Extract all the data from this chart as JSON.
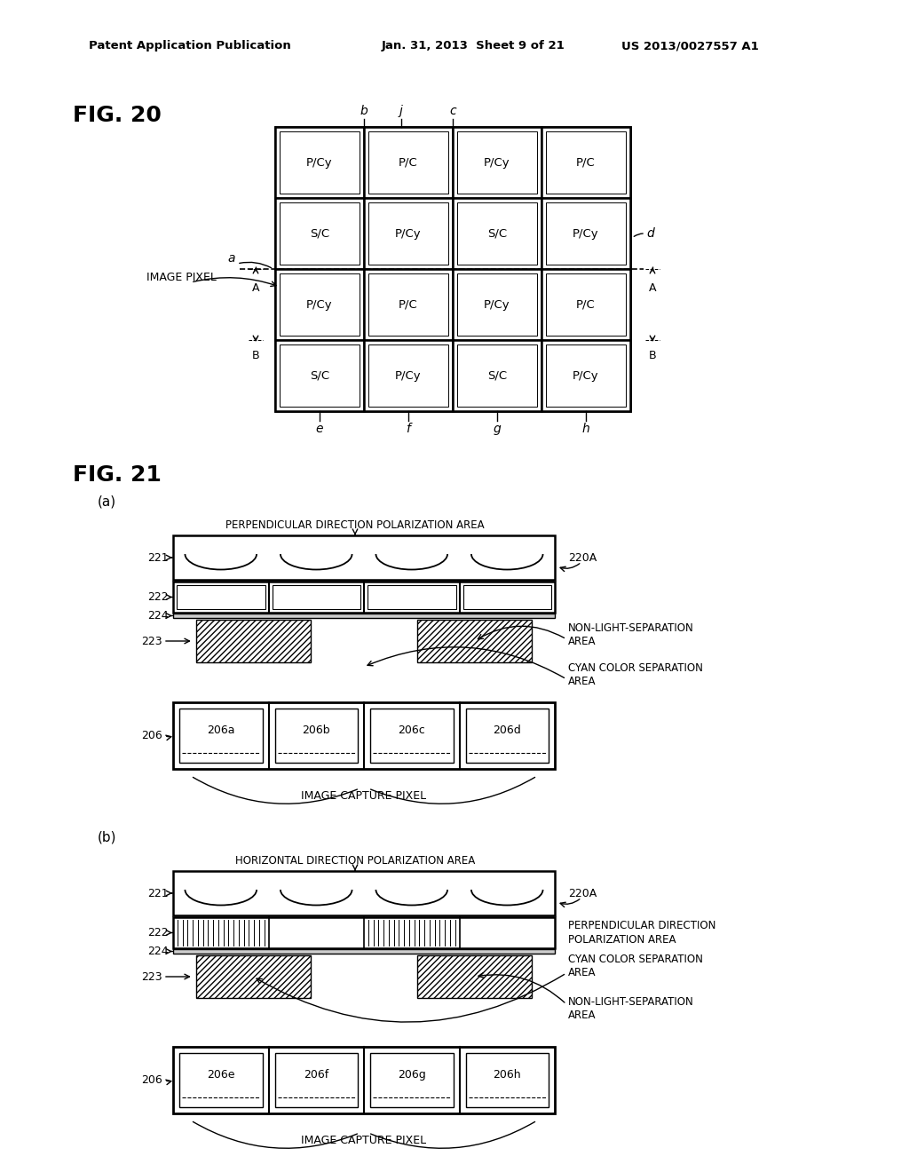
{
  "bg_color": "#ffffff",
  "header_left": "Patent Application Publication",
  "header_mid": "Jan. 31, 2013  Sheet 9 of 21",
  "header_right": "US 2013/0027557 A1",
  "fig20_label": "FIG. 20",
  "fig21_label": "FIG. 21",
  "grid_labels": [
    [
      "P/Cy",
      "P/C",
      "P/Cy",
      "P/C"
    ],
    [
      "S/C",
      "P/Cy",
      "S/C",
      "P/Cy"
    ],
    [
      "P/Cy",
      "P/C",
      "P/Cy",
      "P/C"
    ],
    [
      "S/C",
      "P/Cy",
      "S/C",
      "P/Cy"
    ]
  ],
  "pixel_label": "IMAGE PIXEL",
  "perp_area_label": "PERPENDICULAR DIRECTION POLARIZATION AREA",
  "horiz_area_label": "HORIZONTAL DIRECTION POLARIZATION AREA",
  "perp_area_label2": "PERPENDICULAR DIRECTION\nPOLARIZATION AREA",
  "non_light_label": "NON-LIGHT-SEPARATION\nAREA",
  "cyan_label": "CYAN COLOR SEPARATION\nAREA",
  "label_220A": "220A",
  "label_221": "221",
  "label_222": "222",
  "label_223": "223",
  "label_224": "224",
  "label_206": "206",
  "pixel_labels_a": [
    "206a",
    "206b",
    "206c",
    "206d"
  ],
  "pixel_labels_b": [
    "206e",
    "206f",
    "206g",
    "206h"
  ],
  "image_capture_label": "IMAGE CAPTURE PIXEL",
  "fig21a_title": "(a)",
  "fig21b_title": "(b)"
}
